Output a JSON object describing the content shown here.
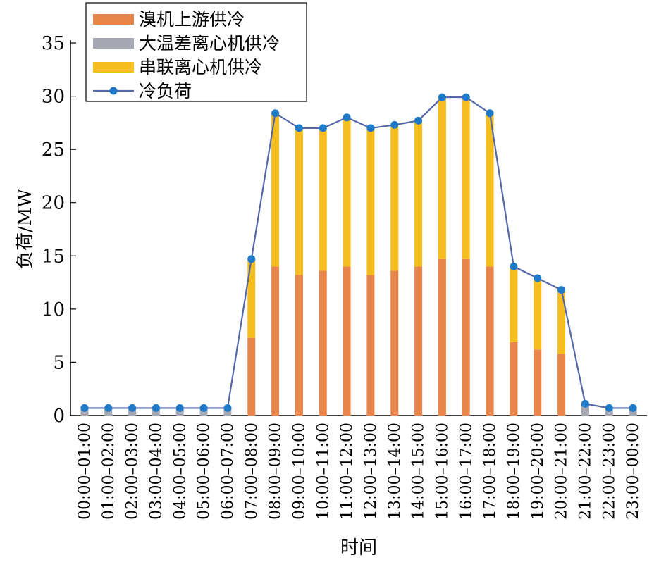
{
  "chart_data": {
    "type": "bar",
    "stacked": true,
    "xlabel": "时间",
    "ylabel": "负荷/MW",
    "ylim": [
      0,
      35
    ],
    "yticks": [
      0,
      5,
      10,
      15,
      20,
      25,
      30,
      35
    ],
    "categories": [
      "00:00–01:00",
      "01:00–02:00",
      "02:00–03:00",
      "03:00–04:00",
      "04:00–05:00",
      "05:00–06:00",
      "06:00–07:00",
      "07:00–08:00",
      "08:00–09:00",
      "09:00–10:00",
      "10:00–11:00",
      "11:00–12:00",
      "12:00–13:00",
      "13:00–14:00",
      "14:00–15:00",
      "15:00–16:00",
      "16:00–17:00",
      "17:00–18:00",
      "18:00–19:00",
      "19:00–20:00",
      "20:00–21:00",
      "21:00–22:00",
      "22:00–23:00",
      "23:00–00:00"
    ],
    "series": [
      {
        "name": "溴机上游供冷",
        "kind": "bar",
        "color": "#E8854A",
        "values": [
          0,
          0,
          0,
          0,
          0,
          0,
          0,
          7.3,
          14,
          13.2,
          13.6,
          14,
          13.2,
          13.6,
          14,
          14.7,
          14.7,
          14,
          6.9,
          6.2,
          5.8,
          0,
          0,
          0
        ]
      },
      {
        "name": "大温差离心机供冷",
        "kind": "bar",
        "color": "#A6A9B4",
        "values": [
          0.8,
          0.8,
          0.8,
          0.8,
          0.8,
          0.8,
          0.8,
          0,
          0,
          0,
          0,
          0,
          0,
          0,
          0,
          0,
          0,
          0,
          0,
          0,
          0,
          1.2,
          0.8,
          0.8
        ]
      },
      {
        "name": "串联离心机供冷",
        "kind": "bar",
        "color": "#F5BE1E",
        "values": [
          0,
          0,
          0,
          0,
          0,
          0,
          0,
          7.4,
          14.4,
          13.8,
          13.4,
          14,
          13.8,
          13.7,
          13.7,
          15.2,
          15.2,
          14.4,
          7.1,
          6.7,
          6.0,
          0,
          0,
          0
        ]
      },
      {
        "name": "冷负荷",
        "kind": "line",
        "color": "#1F7BC8",
        "line_color": "#5468A8",
        "values": [
          0.7,
          0.7,
          0.7,
          0.7,
          0.7,
          0.7,
          0.7,
          14.7,
          28.4,
          27,
          27,
          28,
          27,
          27.3,
          27.7,
          29.9,
          29.9,
          28.4,
          14,
          12.9,
          11.8,
          1.1,
          0.7,
          0.7
        ]
      }
    ],
    "legend": {
      "placement": "top-left"
    },
    "grid": false
  }
}
